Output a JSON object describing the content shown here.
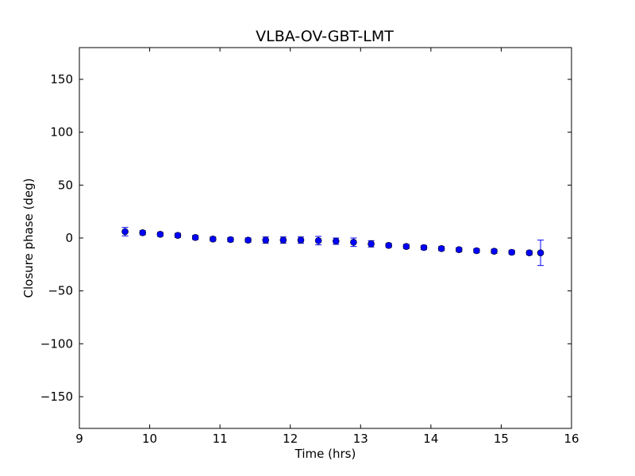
{
  "chart_data": {
    "type": "scatter",
    "title": "VLBA-OV-GBT-LMT",
    "xlabel": "Time (hrs)",
    "ylabel": "Closure phase (deg)",
    "xlim": [
      9,
      16
    ],
    "ylim": [
      -180,
      180
    ],
    "xticks": [
      9,
      10,
      11,
      12,
      13,
      14,
      15,
      16
    ],
    "yticks": [
      150,
      100,
      50,
      0,
      -50,
      -100,
      -150
    ],
    "ytick_labels": [
      "150",
      "100",
      "50",
      "0",
      "−50",
      "−100",
      "−150"
    ],
    "grid": false,
    "marker_color": "#0000ff",
    "errorbar_color": "#0000ff",
    "series": [
      {
        "x": [
          9.65,
          9.9,
          10.15,
          10.4,
          10.65,
          10.9,
          11.15,
          11.4,
          11.65,
          11.9,
          12.15,
          12.4,
          12.65,
          12.9,
          13.15,
          13.4,
          13.65,
          13.9,
          14.15,
          14.4,
          14.65,
          14.9,
          15.15,
          15.4,
          15.56
        ],
        "y": [
          6,
          5,
          3.5,
          2.5,
          0.5,
          -1,
          -1.5,
          -2,
          -2,
          -2,
          -2,
          -2.5,
          -3,
          -4,
          -5.5,
          -7,
          -8,
          -9,
          -10,
          -11,
          -12,
          -12.5,
          -13.5,
          -14,
          -14
        ],
        "yerr": [
          4,
          2,
          2,
          2,
          2,
          2,
          2,
          2,
          3,
          3,
          3,
          4,
          3,
          4,
          3,
          2,
          2,
          2,
          2,
          2,
          2,
          2,
          2,
          2,
          12
        ]
      }
    ]
  }
}
